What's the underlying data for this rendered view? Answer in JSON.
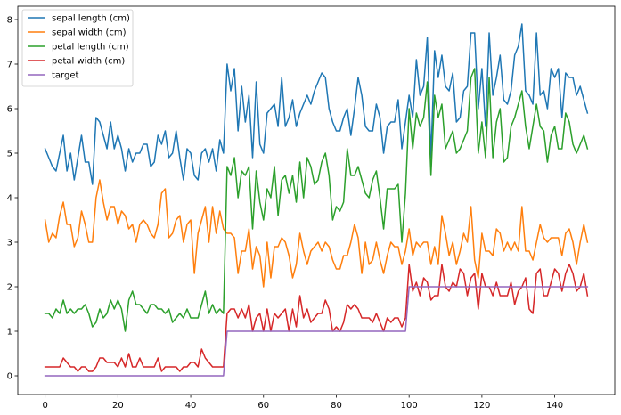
{
  "chart_data": {
    "type": "line",
    "title": "",
    "xlabel": "",
    "ylabel": "",
    "xlim": [
      -7.5,
      156.5
    ],
    "ylim": [
      -0.42,
      8.3
    ],
    "xticks": [
      0,
      20,
      40,
      60,
      80,
      100,
      120,
      140
    ],
    "yticks": [
      0,
      1,
      2,
      3,
      4,
      5,
      6,
      7,
      8
    ],
    "grid": false,
    "legend_position": "top-left",
    "series": [
      {
        "name": "sepal length (cm)",
        "color": "#1f77b4",
        "values": [
          5.1,
          4.9,
          4.7,
          4.6,
          5.0,
          5.4,
          4.6,
          5.0,
          4.4,
          4.9,
          5.4,
          4.8,
          4.8,
          4.3,
          5.8,
          5.7,
          5.4,
          5.1,
          5.7,
          5.1,
          5.4,
          5.1,
          4.6,
          5.1,
          4.8,
          5.0,
          5.0,
          5.2,
          5.2,
          4.7,
          4.8,
          5.4,
          5.2,
          5.5,
          4.9,
          5.0,
          5.5,
          4.9,
          4.4,
          5.1,
          5.0,
          4.5,
          4.4,
          5.0,
          5.1,
          4.8,
          5.1,
          4.6,
          5.3,
          5.0,
          7.0,
          6.4,
          6.9,
          5.5,
          6.5,
          5.7,
          6.3,
          4.9,
          6.6,
          5.2,
          5.0,
          5.9,
          6.0,
          6.1,
          5.6,
          6.7,
          5.6,
          5.8,
          6.2,
          5.6,
          5.9,
          6.1,
          6.3,
          6.1,
          6.4,
          6.6,
          6.8,
          6.7,
          6.0,
          5.7,
          5.5,
          5.5,
          5.8,
          6.0,
          5.4,
          6.0,
          6.7,
          6.3,
          5.6,
          5.5,
          5.5,
          6.1,
          5.8,
          5.0,
          5.6,
          5.7,
          5.7,
          6.2,
          5.1,
          5.7,
          6.3,
          5.8,
          7.1,
          6.3,
          6.5,
          7.6,
          4.9,
          7.3,
          6.7,
          7.2,
          6.5,
          6.4,
          6.8,
          5.7,
          5.8,
          6.4,
          6.5,
          7.7,
          7.7,
          6.0,
          6.9,
          5.6,
          7.7,
          6.3,
          6.7,
          7.2,
          6.2,
          6.1,
          6.4,
          7.2,
          7.4,
          7.9,
          6.4,
          6.3,
          6.1,
          7.7,
          6.3,
          6.4,
          6.0,
          6.9,
          6.7,
          6.9,
          5.8,
          6.8,
          6.7,
          6.7,
          6.3,
          6.5,
          6.2,
          5.9
        ]
      },
      {
        "name": "sepal width (cm)",
        "color": "#ff7f0e",
        "values": [
          3.5,
          3.0,
          3.2,
          3.1,
          3.6,
          3.9,
          3.4,
          3.4,
          2.9,
          3.1,
          3.7,
          3.4,
          3.0,
          3.0,
          4.0,
          4.4,
          3.9,
          3.5,
          3.8,
          3.8,
          3.4,
          3.7,
          3.6,
          3.3,
          3.4,
          3.0,
          3.4,
          3.5,
          3.4,
          3.2,
          3.1,
          3.4,
          4.1,
          4.2,
          3.1,
          3.2,
          3.5,
          3.6,
          3.0,
          3.4,
          3.5,
          2.3,
          3.2,
          3.5,
          3.8,
          3.0,
          3.8,
          3.2,
          3.7,
          3.3,
          3.2,
          3.2,
          3.1,
          2.3,
          2.8,
          2.8,
          3.3,
          2.4,
          2.9,
          2.7,
          2.0,
          3.0,
          2.2,
          2.9,
          2.9,
          3.1,
          3.0,
          2.7,
          2.2,
          2.5,
          3.2,
          2.8,
          2.5,
          2.8,
          2.9,
          3.0,
          2.8,
          3.0,
          2.9,
          2.6,
          2.4,
          2.4,
          2.7,
          2.7,
          3.0,
          3.4,
          3.1,
          2.3,
          3.0,
          2.5,
          2.6,
          3.0,
          2.6,
          2.3,
          2.7,
          3.0,
          2.9,
          2.9,
          2.5,
          2.8,
          3.3,
          2.7,
          3.0,
          2.9,
          3.0,
          3.0,
          2.5,
          2.9,
          2.5,
          3.6,
          3.2,
          2.7,
          3.0,
          2.5,
          2.8,
          3.2,
          3.0,
          3.8,
          2.6,
          2.2,
          3.2,
          2.8,
          2.8,
          2.7,
          3.3,
          3.2,
          2.8,
          3.0,
          2.8,
          3.0,
          2.8,
          3.8,
          2.8,
          2.8,
          2.6,
          3.0,
          3.4,
          3.1,
          3.0,
          3.1,
          3.1,
          3.1,
          2.7,
          3.2,
          3.3,
          3.0,
          2.5,
          3.0,
          3.4,
          3.0
        ]
      },
      {
        "name": "petal length (cm)",
        "color": "#2ca02c",
        "values": [
          1.4,
          1.4,
          1.3,
          1.5,
          1.4,
          1.7,
          1.4,
          1.5,
          1.4,
          1.5,
          1.5,
          1.6,
          1.4,
          1.1,
          1.2,
          1.5,
          1.3,
          1.4,
          1.7,
          1.5,
          1.7,
          1.5,
          1.0,
          1.7,
          1.9,
          1.6,
          1.6,
          1.5,
          1.4,
          1.6,
          1.6,
          1.5,
          1.5,
          1.4,
          1.5,
          1.2,
          1.3,
          1.4,
          1.3,
          1.5,
          1.3,
          1.3,
          1.3,
          1.6,
          1.9,
          1.4,
          1.6,
          1.4,
          1.5,
          1.4,
          4.7,
          4.5,
          4.9,
          4.0,
          4.6,
          4.5,
          4.7,
          3.3,
          4.6,
          3.9,
          3.5,
          4.2,
          4.0,
          4.7,
          3.6,
          4.4,
          4.5,
          4.1,
          4.5,
          3.9,
          4.8,
          4.0,
          4.9,
          4.7,
          4.3,
          4.4,
          4.8,
          5.0,
          4.5,
          3.5,
          3.8,
          3.7,
          3.9,
          5.1,
          4.5,
          4.5,
          4.7,
          4.4,
          4.1,
          4.0,
          4.4,
          4.6,
          4.0,
          3.3,
          4.2,
          4.2,
          4.2,
          4.3,
          3.0,
          4.1,
          6.0,
          5.1,
          5.9,
          5.6,
          5.8,
          6.6,
          4.5,
          6.3,
          5.8,
          6.1,
          5.1,
          5.3,
          5.5,
          5.0,
          5.1,
          5.3,
          5.5,
          6.7,
          6.9,
          5.0,
          5.7,
          4.9,
          6.7,
          4.9,
          5.7,
          6.0,
          4.8,
          4.9,
          5.6,
          5.8,
          6.1,
          6.4,
          5.6,
          5.1,
          5.6,
          6.1,
          5.6,
          5.5,
          4.8,
          5.4,
          5.6,
          5.1,
          5.1,
          5.9,
          5.7,
          5.2,
          5.0,
          5.2,
          5.4,
          5.1
        ]
      },
      {
        "name": "petal width (cm)",
        "color": "#d62728",
        "values": [
          0.2,
          0.2,
          0.2,
          0.2,
          0.2,
          0.4,
          0.3,
          0.2,
          0.2,
          0.1,
          0.2,
          0.2,
          0.1,
          0.1,
          0.2,
          0.4,
          0.4,
          0.3,
          0.3,
          0.3,
          0.2,
          0.4,
          0.2,
          0.5,
          0.2,
          0.2,
          0.4,
          0.2,
          0.2,
          0.2,
          0.2,
          0.4,
          0.1,
          0.2,
          0.2,
          0.2,
          0.2,
          0.1,
          0.2,
          0.2,
          0.3,
          0.3,
          0.2,
          0.6,
          0.4,
          0.3,
          0.2,
          0.2,
          0.2,
          0.2,
          1.4,
          1.5,
          1.5,
          1.3,
          1.5,
          1.3,
          1.6,
          1.0,
          1.3,
          1.4,
          1.0,
          1.5,
          1.0,
          1.4,
          1.3,
          1.4,
          1.5,
          1.0,
          1.5,
          1.1,
          1.8,
          1.3,
          1.5,
          1.2,
          1.3,
          1.4,
          1.4,
          1.7,
          1.5,
          1.0,
          1.1,
          1.0,
          1.2,
          1.6,
          1.5,
          1.6,
          1.5,
          1.3,
          1.3,
          1.3,
          1.2,
          1.4,
          1.2,
          1.0,
          1.3,
          1.2,
          1.3,
          1.3,
          1.1,
          1.3,
          2.5,
          1.9,
          2.1,
          1.8,
          2.2,
          2.1,
          1.7,
          1.8,
          1.8,
          2.5,
          2.0,
          1.9,
          2.1,
          2.0,
          2.4,
          2.3,
          1.8,
          2.2,
          2.3,
          1.5,
          2.3,
          2.0,
          2.0,
          1.8,
          2.1,
          1.8,
          1.8,
          1.8,
          2.1,
          1.6,
          1.9,
          2.0,
          2.2,
          1.5,
          1.4,
          2.3,
          2.4,
          1.8,
          1.8,
          2.1,
          2.4,
          2.3,
          1.9,
          2.3,
          2.5,
          2.3,
          1.9,
          2.0,
          2.3,
          1.8
        ]
      },
      {
        "name": "target",
        "color": "#9467bd",
        "values": [
          0,
          0,
          0,
          0,
          0,
          0,
          0,
          0,
          0,
          0,
          0,
          0,
          0,
          0,
          0,
          0,
          0,
          0,
          0,
          0,
          0,
          0,
          0,
          0,
          0,
          0,
          0,
          0,
          0,
          0,
          0,
          0,
          0,
          0,
          0,
          0,
          0,
          0,
          0,
          0,
          0,
          0,
          0,
          0,
          0,
          0,
          0,
          0,
          0,
          0,
          1,
          1,
          1,
          1,
          1,
          1,
          1,
          1,
          1,
          1,
          1,
          1,
          1,
          1,
          1,
          1,
          1,
          1,
          1,
          1,
          1,
          1,
          1,
          1,
          1,
          1,
          1,
          1,
          1,
          1,
          1,
          1,
          1,
          1,
          1,
          1,
          1,
          1,
          1,
          1,
          1,
          1,
          1,
          1,
          1,
          1,
          1,
          1,
          1,
          1,
          2,
          2,
          2,
          2,
          2,
          2,
          2,
          2,
          2,
          2,
          2,
          2,
          2,
          2,
          2,
          2,
          2,
          2,
          2,
          2,
          2,
          2,
          2,
          2,
          2,
          2,
          2,
          2,
          2,
          2,
          2,
          2,
          2,
          2,
          2,
          2,
          2,
          2,
          2,
          2,
          2,
          2,
          2,
          2,
          2,
          2,
          2,
          2,
          2,
          2
        ]
      }
    ]
  }
}
